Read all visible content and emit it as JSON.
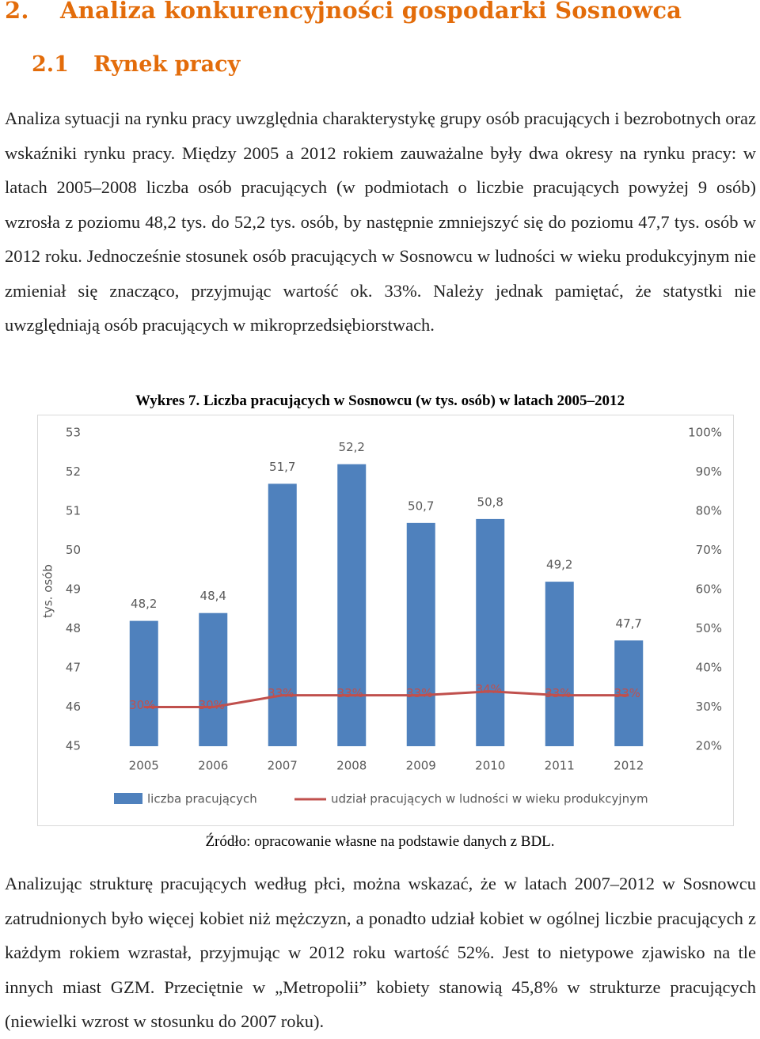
{
  "heading1": {
    "number": "2.",
    "title": "Analiza konkurencyjności gospodarki Sosnowca"
  },
  "heading2": {
    "number": "2.1",
    "title": "Rynek pracy"
  },
  "paragraph1": "Analiza sytuacji na rynku pracy uwzględnia charakterystykę grupy osób pracujących i bezrobotnych oraz wskaźniki rynku pracy. Między 2005 a 2012 rokiem zauważalne były dwa okresy na rynku pracy: w latach 2005–2008 liczba osób pracujących (w podmiotach o liczbie pracujących powyżej 9 osób) wzrosła z poziomu 48,2 tys. do 52,2 tys. osób, by następnie zmniejszyć się do poziomu 47,7 tys. osób w 2012 roku. Jednocześnie stosunek osób pracujących w Sosnowcu w ludności w wieku produkcyjnym nie zmieniał się znacząco, przyjmując wartość ok. 33%. Należy jednak pamiętać, że statystki nie uwzględniają osób pracujących w mikroprzedsiębiorstwach.",
  "chart_title": "Wykres 7. Liczba pracujących w Sosnowcu (w tys. osób) w latach 2005–2012",
  "chart_data": {
    "type": "bar",
    "categories": [
      "2005",
      "2006",
      "2007",
      "2008",
      "2009",
      "2010",
      "2011",
      "2012"
    ],
    "series": [
      {
        "name": "liczba pracujących",
        "type": "bar",
        "axis": "left",
        "color": "#4F81BD",
        "values": [
          48.2,
          48.4,
          51.7,
          52.2,
          50.7,
          50.8,
          49.2,
          47.7
        ],
        "labels": [
          "48,2",
          "48,4",
          "51,7",
          "52,2",
          "50,7",
          "50,8",
          "49,2",
          "47,7"
        ]
      },
      {
        "name": "udział pracujących w ludności w wieku produkcyjnym",
        "type": "line",
        "axis": "right",
        "color": "#C0504D",
        "values": [
          30,
          30,
          33,
          33,
          33,
          34,
          33,
          33
        ],
        "labels": [
          "30%",
          "30%",
          "33%",
          "33%",
          "33%",
          "34%",
          "33%",
          "33%"
        ]
      }
    ],
    "ylabel": "tys. osób",
    "ylim": [
      45,
      53
    ],
    "y_ticks": [
      "45",
      "46",
      "47",
      "48",
      "49",
      "50",
      "51",
      "52",
      "53"
    ],
    "y2lim": [
      20,
      100
    ],
    "y2_ticks": [
      "20%",
      "30%",
      "40%",
      "50%",
      "60%",
      "70%",
      "80%",
      "90%",
      "100%"
    ],
    "grid": false,
    "legend": "bottom"
  },
  "source": "Źródło: opracowanie własne na podstawie danych z BDL.",
  "paragraph2": "Analizując strukturę pracujących według płci, można wskazać, że w latach 2007–2012 w Sosnowcu zatrudnionych było więcej kobiet niż mężczyzn, a ponadto udział kobiet w ogólnej liczbie pracujących z każdym rokiem wzrastał, przyjmując w 2012 roku wartość 52%. Jest to nietypowe zjawisko na tle innych miast GZM. Przeciętnie w „Metropolii” kobiety stanowią 45,8% w strukturze pracujących (niewielki wzrost w stosunku do 2007 roku)."
}
